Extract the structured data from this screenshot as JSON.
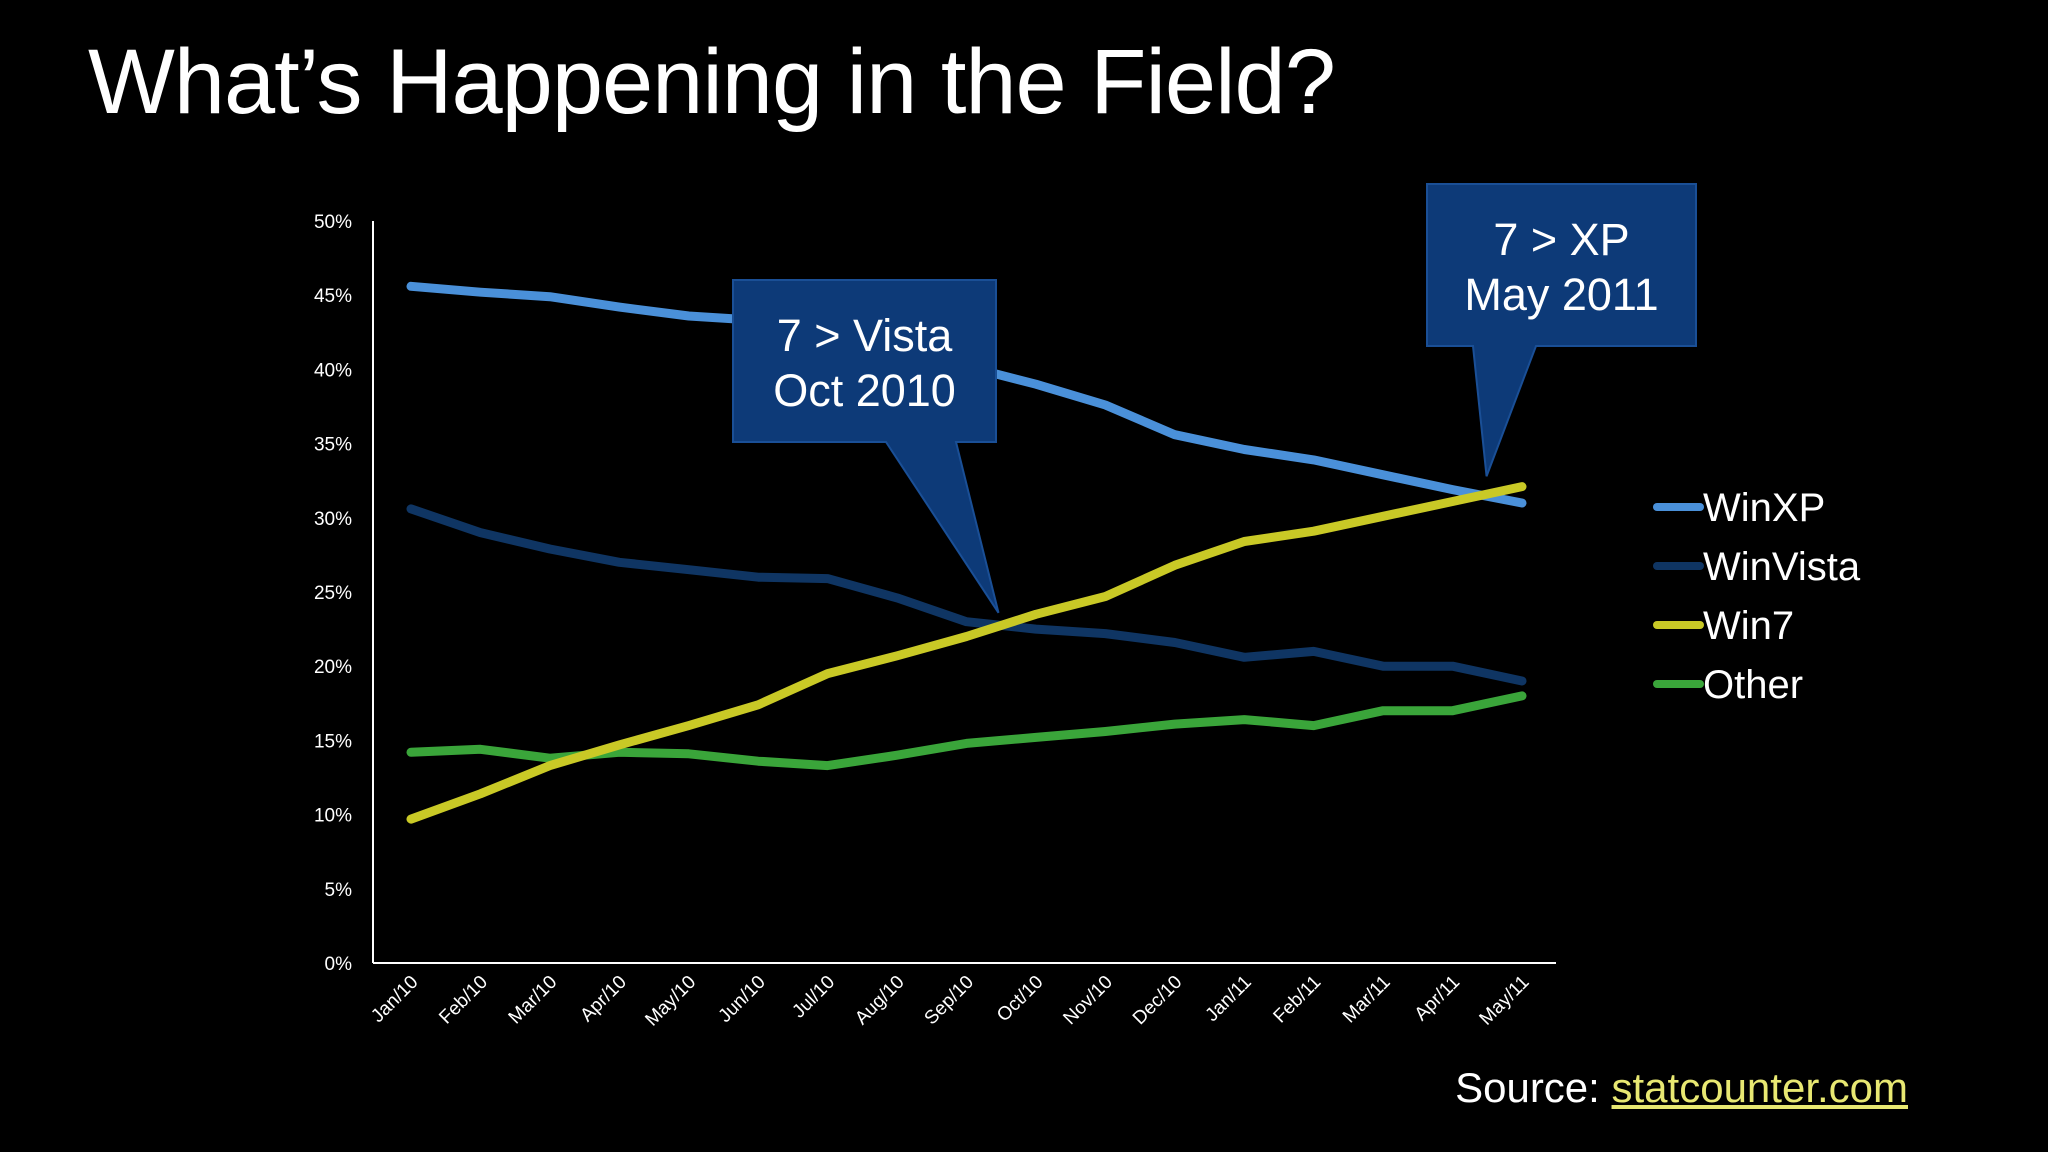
{
  "slide": {
    "title": "What’s Happening in the Field?",
    "source_label": "Source:",
    "source_link": "statcounter.com"
  },
  "callouts": [
    {
      "line1": "7 > Vista",
      "line2": "Oct 2010",
      "points_to": "Sep/10"
    },
    {
      "line1": "7 > XP",
      "line2": "May 2011",
      "points_to": "Apr/11"
    }
  ],
  "colors": {
    "background": "#000000",
    "axis": "#ffffff",
    "callout_fill": "#0d3a78",
    "callout_border": "#1a4f96",
    "source_link": "#e8e872"
  },
  "chart_data": {
    "type": "line",
    "title": "",
    "xlabel": "",
    "ylabel": "",
    "categories": [
      "Jan/10",
      "Feb/10",
      "Mar/10",
      "Apr/10",
      "May/10",
      "Jun/10",
      "Jul/10",
      "Aug/10",
      "Sep/10",
      "Oct/10",
      "Nov/10",
      "Dec/10",
      "Jan/11",
      "Feb/11",
      "Mar/11",
      "Apr/11",
      "May/11"
    ],
    "ylim": [
      0,
      50
    ],
    "yticks": [
      "0%",
      "5%",
      "10%",
      "15%",
      "20%",
      "25%",
      "30%",
      "35%",
      "40%",
      "45%",
      "50%"
    ],
    "grid": false,
    "legend_position": "right",
    "series": [
      {
        "name": "WinXP",
        "color": "#4a90d9",
        "values": [
          45.6,
          45.2,
          44.9,
          44.2,
          43.6,
          43.3,
          42.2,
          41.0,
          40.2,
          39.0,
          37.6,
          35.6,
          34.6,
          33.9,
          32.9,
          31.9,
          31.0
        ]
      },
      {
        "name": "WinVista",
        "color": "#0f3563",
        "values": [
          30.6,
          29.0,
          27.9,
          27.0,
          26.5,
          26.0,
          25.9,
          24.6,
          23.0,
          22.5,
          22.2,
          21.6,
          20.6,
          21.0,
          20.0,
          20.0,
          19.0
        ]
      },
      {
        "name": "Win7",
        "color": "#c9c926",
        "values": [
          9.7,
          11.4,
          13.3,
          14.7,
          16.0,
          17.4,
          19.5,
          20.7,
          22.0,
          23.5,
          24.7,
          26.8,
          28.4,
          29.1,
          30.1,
          31.1,
          32.1
        ]
      },
      {
        "name": "Other",
        "color": "#3aa53a",
        "values": [
          14.2,
          14.4,
          13.8,
          14.2,
          14.1,
          13.6,
          13.3,
          14.0,
          14.8,
          15.2,
          15.6,
          16.1,
          16.4,
          16.0,
          17.0,
          17.0,
          18.0
        ]
      }
    ]
  }
}
